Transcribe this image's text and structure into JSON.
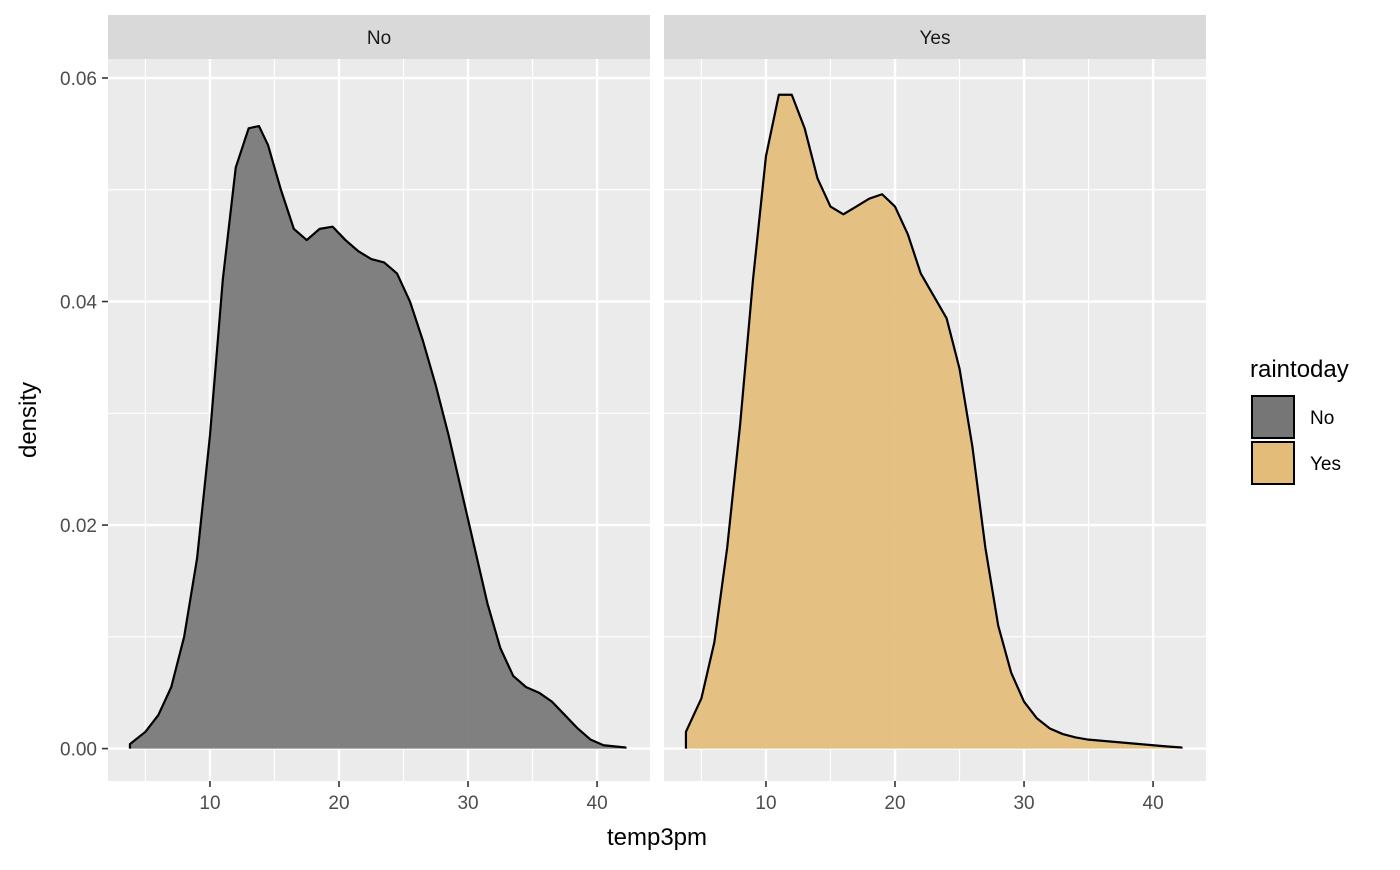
{
  "chart_data": {
    "type": "area",
    "xlabel": "temp3pm",
    "ylabel": "density",
    "xlim": [
      2.1,
      44.1
    ],
    "ylim": [
      -0.0029,
      0.0617
    ],
    "x_ticks": [
      10,
      20,
      30,
      40
    ],
    "x_tick_labels": [
      "10",
      "20",
      "30",
      "40"
    ],
    "y_ticks": [
      0.0,
      0.02,
      0.04,
      0.06
    ],
    "y_tick_labels": [
      "0.00",
      "0.02",
      "0.04",
      "0.06"
    ],
    "grid": true,
    "legend": {
      "title": "raintoday",
      "position": "right",
      "items": [
        {
          "label": "No",
          "color": "#767676"
        },
        {
          "label": "Yes",
          "color": "#E3BC7A"
        }
      ]
    },
    "panels": [
      {
        "strip": "No",
        "fill": "#767676",
        "points": [
          [
            3.8,
            0.0004
          ],
          [
            5,
            0.0015
          ],
          [
            6,
            0.003
          ],
          [
            7,
            0.0055
          ],
          [
            8,
            0.01
          ],
          [
            9,
            0.017
          ],
          [
            10,
            0.028
          ],
          [
            11,
            0.042
          ],
          [
            12,
            0.052
          ],
          [
            13,
            0.0555
          ],
          [
            13.8,
            0.0557
          ],
          [
            14.5,
            0.054
          ],
          [
            15.5,
            0.05
          ],
          [
            16.5,
            0.0465
          ],
          [
            17.5,
            0.0455
          ],
          [
            18.5,
            0.0465
          ],
          [
            19.5,
            0.0467
          ],
          [
            20.5,
            0.0455
          ],
          [
            21.5,
            0.0445
          ],
          [
            22.5,
            0.0438
          ],
          [
            23.5,
            0.0435
          ],
          [
            24.5,
            0.0425
          ],
          [
            25.5,
            0.04
          ],
          [
            26.5,
            0.0365
          ],
          [
            27.5,
            0.0325
          ],
          [
            28.5,
            0.028
          ],
          [
            29.5,
            0.023
          ],
          [
            30.5,
            0.018
          ],
          [
            31.5,
            0.013
          ],
          [
            32.5,
            0.009
          ],
          [
            33.5,
            0.0065
          ],
          [
            34.5,
            0.0055
          ],
          [
            35.5,
            0.005
          ],
          [
            36.5,
            0.0042
          ],
          [
            37.5,
            0.003
          ],
          [
            38.5,
            0.0018
          ],
          [
            39.5,
            0.0008
          ],
          [
            40.5,
            0.0003
          ],
          [
            42.2,
            0.0001
          ]
        ]
      },
      {
        "strip": "Yes",
        "fill": "#E3BC7A",
        "points": [
          [
            3.8,
            0.0015
          ],
          [
            5,
            0.0045
          ],
          [
            6,
            0.0095
          ],
          [
            7,
            0.018
          ],
          [
            8,
            0.029
          ],
          [
            9,
            0.042
          ],
          [
            10,
            0.053
          ],
          [
            11,
            0.0585
          ],
          [
            12,
            0.0585
          ],
          [
            13,
            0.0555
          ],
          [
            14,
            0.051
          ],
          [
            15,
            0.0485
          ],
          [
            16,
            0.0478
          ],
          [
            17,
            0.0485
          ],
          [
            18,
            0.0492
          ],
          [
            19,
            0.0496
          ],
          [
            20,
            0.0485
          ],
          [
            21,
            0.046
          ],
          [
            22,
            0.0425
          ],
          [
            23,
            0.0405
          ],
          [
            24,
            0.0385
          ],
          [
            25,
            0.034
          ],
          [
            26,
            0.027
          ],
          [
            27,
            0.018
          ],
          [
            28,
            0.011
          ],
          [
            29,
            0.0068
          ],
          [
            30,
            0.0042
          ],
          [
            31,
            0.0027
          ],
          [
            32,
            0.0018
          ],
          [
            33,
            0.0013
          ],
          [
            34,
            0.001
          ],
          [
            35,
            0.0008
          ],
          [
            36,
            0.0007
          ],
          [
            37,
            0.0006
          ],
          [
            38,
            0.0005
          ],
          [
            39,
            0.0004
          ],
          [
            40,
            0.0003
          ],
          [
            41,
            0.0002
          ],
          [
            42.2,
            0.0001
          ]
        ]
      }
    ]
  }
}
